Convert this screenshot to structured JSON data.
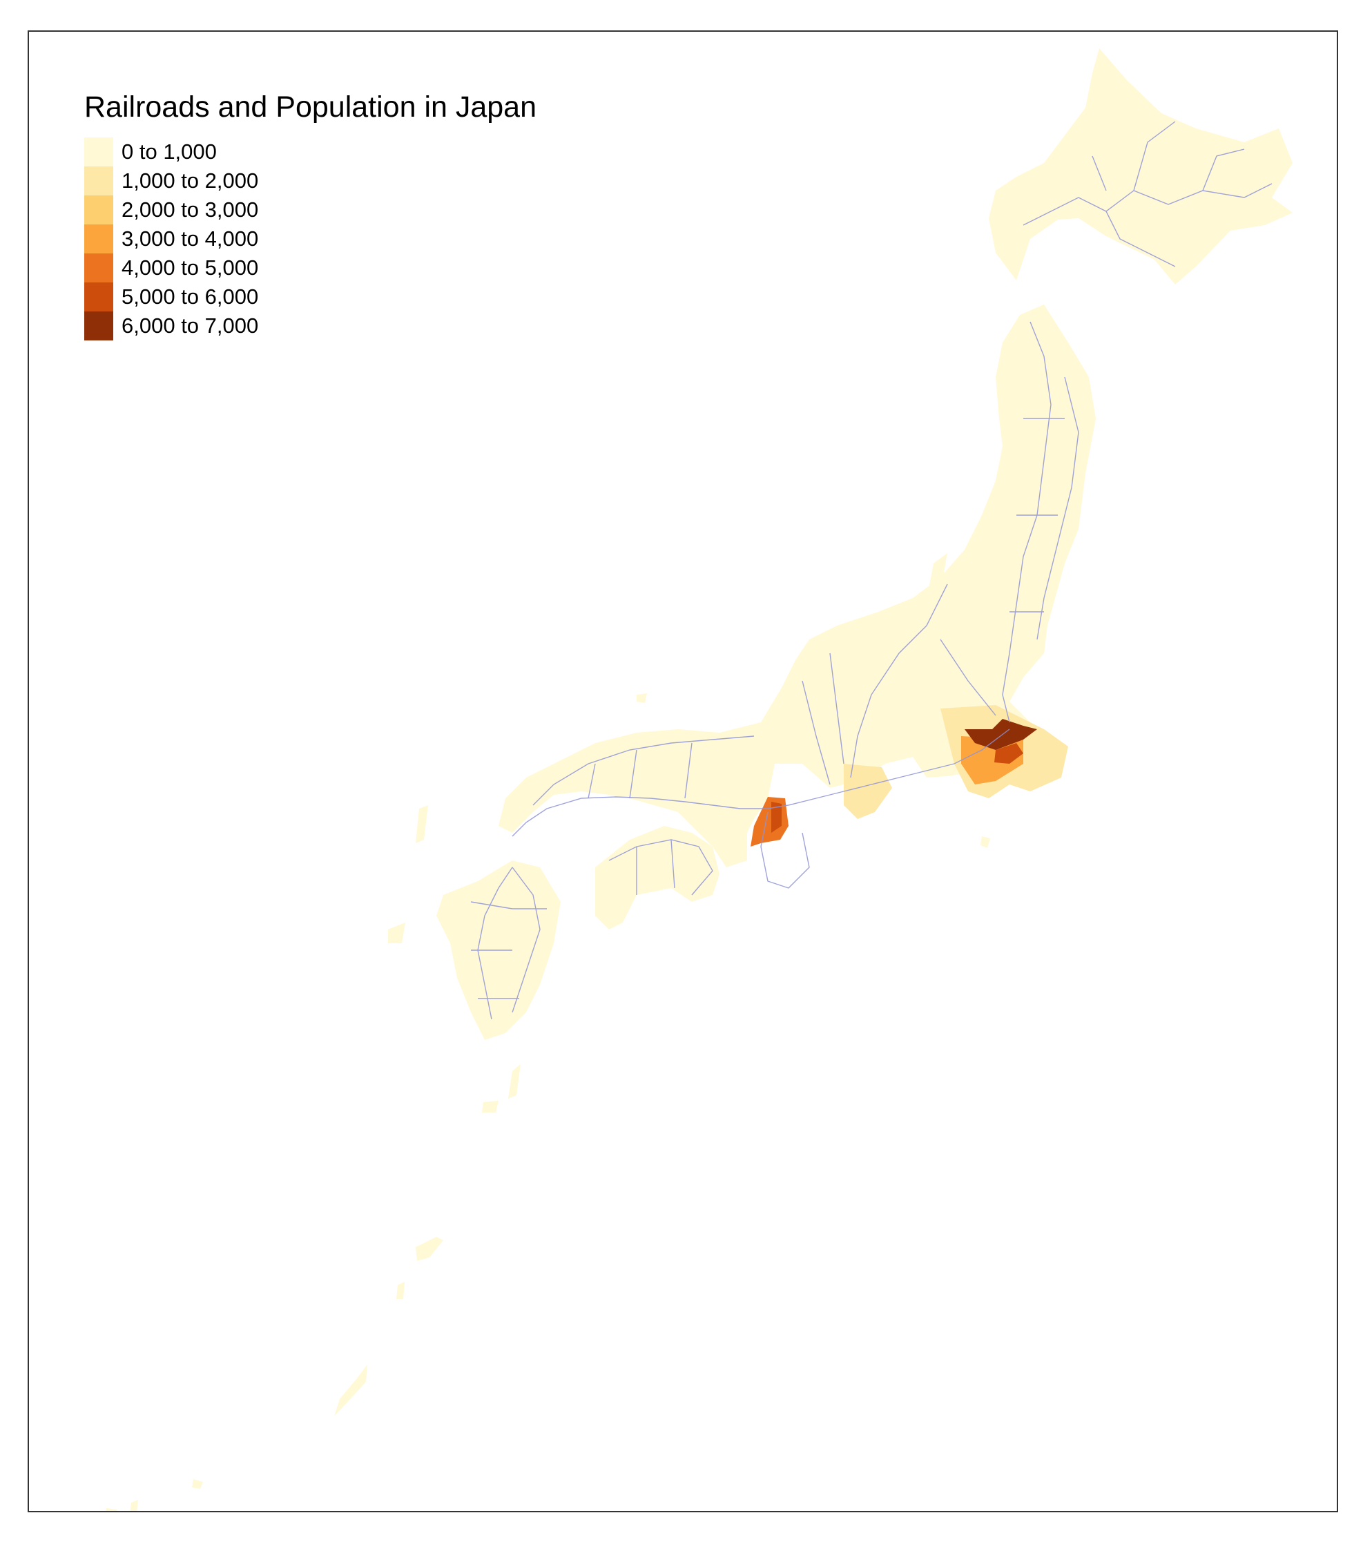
{
  "map": {
    "title": "Railroads and Population in Japan",
    "land_color": "#fff9d6",
    "railroad_color": "#8e93d6",
    "border_color": "#333333"
  },
  "legend": {
    "items": [
      {
        "label": "0 to 1,000",
        "color": "#fff9d6"
      },
      {
        "label": "1,000 to 2,000",
        "color": "#fde8a8"
      },
      {
        "label": "2,000 to 3,000",
        "color": "#fdcf6e"
      },
      {
        "label": "3,000 to 4,000",
        "color": "#fba53c"
      },
      {
        "label": "4,000 to 5,000",
        "color": "#ec7420"
      },
      {
        "label": "5,000 to 6,000",
        "color": "#cd4d0c"
      },
      {
        "label": "6,000 to 7,000",
        "color": "#8f2f07"
      }
    ]
  }
}
